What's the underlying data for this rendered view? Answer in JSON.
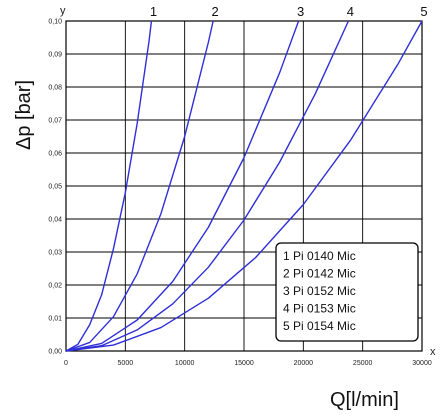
{
  "chart_data": {
    "type": "line",
    "x_axis_letter": "x",
    "y_axis_letter": "y",
    "xlabel": "Q[l/min]",
    "ylabel": "Δp [bar]",
    "xlim": [
      0,
      30000
    ],
    "ylim": [
      0,
      0.1
    ],
    "x_ticks": [
      "0",
      "5000",
      "10000",
      "15000",
      "20000",
      "25000",
      "30000"
    ],
    "y_ticks": [
      "0,00",
      "0,01",
      "0,02",
      "0,03",
      "0,04",
      "0,05",
      "0,06",
      "0,07",
      "0,08",
      "0,09",
      "0,10"
    ],
    "grid": true,
    "legend_position": "bottom-right",
    "series_color": "#2f2fd8",
    "series": [
      {
        "name": "1 Pi 0140 Mic",
        "end_label": "1",
        "x": [
          0,
          1000,
          2000,
          3000,
          4000,
          5000,
          6000,
          7000,
          7200
        ],
        "y": [
          0,
          0.002,
          0.008,
          0.017,
          0.031,
          0.048,
          0.069,
          0.094,
          0.1
        ]
      },
      {
        "name": "2 Pi 0142 Mic",
        "end_label": "2",
        "x": [
          0,
          2000,
          4000,
          6000,
          8000,
          10000,
          12000,
          12400
        ],
        "y": [
          0,
          0.0026,
          0.0104,
          0.0234,
          0.0416,
          0.065,
          0.0936,
          0.1
        ]
      },
      {
        "name": "3 Pi 0152 Mic",
        "end_label": "3",
        "x": [
          0,
          3000,
          6000,
          9000,
          12000,
          15000,
          18000,
          19600
        ],
        "y": [
          0,
          0.0023,
          0.0094,
          0.0211,
          0.0375,
          0.0586,
          0.0843,
          0.1
        ]
      },
      {
        "name": "4 Pi 0153 Mic",
        "end_label": "4",
        "x": [
          0,
          3000,
          6000,
          9000,
          12000,
          15000,
          18000,
          21000,
          23800
        ],
        "y": [
          0,
          0.0016,
          0.0064,
          0.0143,
          0.0254,
          0.0397,
          0.0572,
          0.0779,
          0.1
        ]
      },
      {
        "name": "5 Pi 0154 Mic",
        "end_label": "5",
        "x": [
          0,
          4000,
          8000,
          12000,
          16000,
          20000,
          24000,
          28000,
          30000
        ],
        "y": [
          0,
          0.0018,
          0.0071,
          0.016,
          0.0284,
          0.0444,
          0.064,
          0.0871,
          0.1
        ]
      }
    ]
  }
}
